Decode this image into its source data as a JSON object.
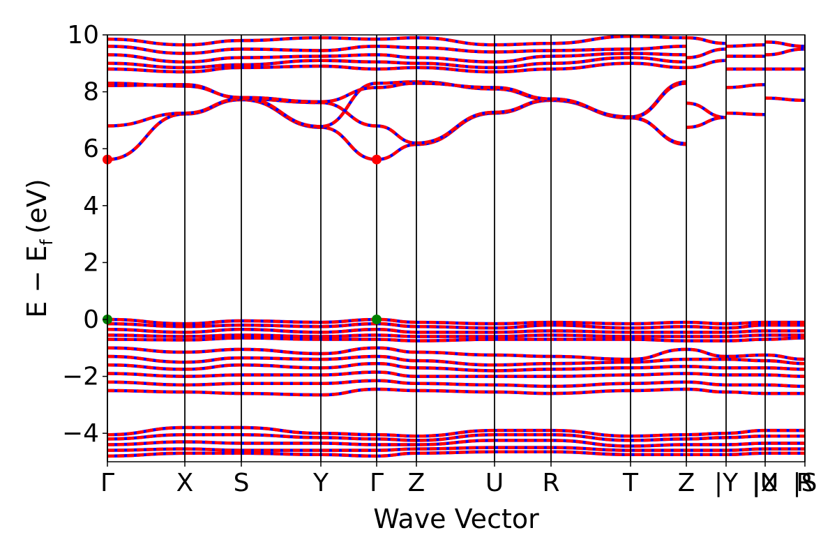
{
  "chart_data": {
    "type": "line",
    "xlabel": "Wave Vector",
    "ylabel": {
      "main": "E − E",
      "sub": "f",
      "unit": "(eV)"
    },
    "ylim": [
      -5,
      10
    ],
    "yticks": [
      -4,
      -2,
      0,
      2,
      4,
      6,
      8,
      10
    ],
    "ytick_labels": [
      "−4",
      "−2",
      "0",
      "2",
      "4",
      "6",
      "8",
      "10"
    ],
    "grid": false,
    "legend": "none",
    "kpath_range": [
      0,
      1
    ],
    "kpoints": [
      {
        "label": "Γ",
        "x": 0.0
      },
      {
        "label": "X",
        "x": 0.111
      },
      {
        "label": "S",
        "x": 0.192
      },
      {
        "label": "Y",
        "x": 0.306
      },
      {
        "label": "Γ",
        "x": 0.386
      },
      {
        "label": "Z",
        "x": 0.443
      },
      {
        "label": "U",
        "x": 0.555
      },
      {
        "label": "R",
        "x": 0.636
      },
      {
        "label": "T",
        "x": 0.75
      },
      {
        "label": "Z",
        "x": 0.83
      },
      {
        "label": "|Y",
        "x": 0.887
      },
      {
        "label": "|X",
        "x": 0.943
      },
      {
        "label": "|U",
        "x": 0.943
      },
      {
        "label": "|S",
        "x": 1.0
      },
      {
        "label": "R",
        "x": 1.0
      }
    ],
    "kpoint_lines": [
      0.0,
      0.111,
      0.192,
      0.306,
      0.386,
      0.443,
      0.555,
      0.636,
      0.75,
      0.83,
      0.887,
      0.943,
      1.0
    ],
    "segment_breaks": [
      0.83,
      0.887,
      0.943
    ],
    "colors": {
      "spin_up": "#0000ff",
      "spin_down": "#ff0000",
      "cbm": "#ff0000",
      "vbm": "#008000",
      "line": "#000000"
    },
    "cbm_points": [
      {
        "x": 0.0,
        "y": 5.62
      },
      {
        "x": 0.386,
        "y": 5.62
      }
    ],
    "vbm_points": [
      {
        "x": 0.0,
        "y": 0.0
      },
      {
        "x": 0.386,
        "y": 0.0
      }
    ],
    "bands": [
      {
        "x": [
          0.0,
          0.111,
          0.192,
          0.306,
          0.386,
          0.443,
          0.555,
          0.636,
          0.75,
          0.83
        ],
        "y": [
          5.62,
          7.22,
          7.72,
          6.75,
          5.62,
          6.15,
          7.25,
          7.7,
          7.1,
          6.15
        ]
      },
      {
        "x": [
          0.0,
          0.111,
          0.192,
          0.306,
          0.386,
          0.443,
          0.555,
          0.636,
          0.75,
          0.83
        ],
        "y": [
          6.8,
          7.25,
          7.75,
          7.62,
          6.8,
          6.2,
          7.28,
          7.72,
          7.12,
          8.35
        ]
      },
      {
        "x": [
          0.0,
          0.111,
          0.192,
          0.306,
          0.386,
          0.443,
          0.555,
          0.636,
          0.75,
          0.83
        ],
        "y": [
          8.22,
          8.25,
          7.78,
          6.78,
          8.3,
          8.35,
          8.1,
          7.72,
          7.08,
          6.18
        ]
      },
      {
        "x": [
          0.0,
          0.111,
          0.192,
          0.306,
          0.386,
          0.443,
          0.555,
          0.636,
          0.75,
          0.83
        ],
        "y": [
          8.3,
          8.2,
          7.8,
          7.65,
          8.15,
          8.3,
          8.15,
          7.75,
          7.1,
          8.3
        ]
      },
      {
        "x": [
          0.0,
          0.111,
          0.192,
          0.306,
          0.386,
          0.443,
          0.555,
          0.636,
          0.75,
          0.83
        ],
        "y": [
          8.8,
          8.7,
          8.85,
          8.9,
          8.8,
          8.85,
          8.7,
          8.8,
          9.0,
          8.85
        ]
      },
      {
        "x": [
          0.0,
          0.111,
          0.192,
          0.306,
          0.386,
          0.443,
          0.555,
          0.636,
          0.75,
          0.83
        ],
        "y": [
          9.0,
          8.85,
          8.95,
          9.1,
          9.05,
          9.0,
          8.85,
          9.0,
          9.2,
          9.05
        ]
      },
      {
        "x": [
          0.0,
          0.111,
          0.192,
          0.306,
          0.386,
          0.443,
          0.555,
          0.636,
          0.75,
          0.83
        ],
        "y": [
          9.3,
          9.05,
          9.2,
          9.25,
          9.3,
          9.2,
          9.05,
          9.25,
          9.35,
          9.3
        ]
      },
      {
        "x": [
          0.0,
          0.111,
          0.192,
          0.306,
          0.386,
          0.443,
          0.555,
          0.636,
          0.75,
          0.83
        ],
        "y": [
          9.6,
          9.35,
          9.5,
          9.45,
          9.6,
          9.55,
          9.4,
          9.45,
          9.5,
          9.6
        ]
      },
      {
        "x": [
          0.0,
          0.111,
          0.192,
          0.306,
          0.386,
          0.443,
          0.555,
          0.636,
          0.75,
          0.83
        ],
        "y": [
          9.85,
          9.65,
          9.8,
          9.9,
          9.85,
          9.9,
          9.65,
          9.7,
          9.95,
          9.9
        ]
      },
      {
        "x": [
          0.83,
          0.887
        ],
        "y": [
          7.6,
          7.1
        ]
      },
      {
        "x": [
          0.83,
          0.887
        ],
        "y": [
          6.75,
          7.1
        ]
      },
      {
        "x": [
          0.83,
          0.887
        ],
        "y": [
          8.85,
          9.1
        ]
      },
      {
        "x": [
          0.83,
          0.887
        ],
        "y": [
          9.2,
          9.5
        ]
      },
      {
        "x": [
          0.83,
          0.887
        ],
        "y": [
          9.9,
          9.7
        ]
      },
      {
        "x": [
          0.887,
          0.943
        ],
        "y": [
          8.15,
          8.25
        ]
      },
      {
        "x": [
          0.887,
          0.943
        ],
        "y": [
          7.25,
          7.2
        ]
      },
      {
        "x": [
          0.887,
          0.943
        ],
        "y": [
          8.8,
          8.8
        ]
      },
      {
        "x": [
          0.887,
          0.943
        ],
        "y": [
          9.25,
          9.25
        ]
      },
      {
        "x": [
          0.887,
          0.943
        ],
        "y": [
          9.6,
          9.65
        ]
      },
      {
        "x": [
          0.943,
          1.0
        ],
        "y": [
          7.78,
          7.7
        ]
      },
      {
        "x": [
          0.943,
          1.0
        ],
        "y": [
          8.8,
          8.8
        ]
      },
      {
        "x": [
          0.943,
          1.0
        ],
        "y": [
          9.3,
          9.5
        ]
      },
      {
        "x": [
          0.943,
          1.0
        ],
        "y": [
          9.75,
          9.6
        ]
      },
      {
        "x": [
          0.0,
          0.111,
          0.192,
          0.306,
          0.386,
          0.443,
          0.555,
          0.636,
          0.75,
          0.83,
          0.887,
          0.943,
          1.0
        ],
        "y": [
          0.0,
          -0.15,
          -0.05,
          -0.1,
          0.0,
          -0.1,
          -0.15,
          -0.1,
          -0.15,
          -0.1,
          -0.15,
          -0.1,
          -0.1
        ]
      },
      {
        "x": [
          0.0,
          0.111,
          0.192,
          0.306,
          0.386,
          0.443,
          0.555,
          0.636,
          0.75,
          0.83,
          0.887,
          0.943,
          1.0
        ],
        "y": [
          -0.15,
          -0.25,
          -0.2,
          -0.25,
          -0.15,
          -0.25,
          -0.3,
          -0.2,
          -0.3,
          -0.25,
          -0.3,
          -0.2,
          -0.2
        ]
      },
      {
        "x": [
          0.0,
          0.111,
          0.192,
          0.306,
          0.386,
          0.443,
          0.555,
          0.636,
          0.75,
          0.83,
          0.887,
          0.943,
          1.0
        ],
        "y": [
          -0.35,
          -0.45,
          -0.35,
          -0.45,
          -0.35,
          -0.45,
          -0.45,
          -0.4,
          -0.45,
          -0.45,
          -0.45,
          -0.4,
          -0.4
        ]
      },
      {
        "x": [
          0.0,
          0.111,
          0.192,
          0.306,
          0.386,
          0.443,
          0.555,
          0.636,
          0.75,
          0.83,
          0.887,
          0.943,
          1.0
        ],
        "y": [
          -0.55,
          -0.6,
          -0.55,
          -0.6,
          -0.55,
          -0.6,
          -0.6,
          -0.55,
          -0.6,
          -0.6,
          -0.6,
          -0.55,
          -0.55
        ]
      },
      {
        "x": [
          0.0,
          0.111,
          0.192,
          0.306,
          0.386,
          0.443,
          0.555,
          0.636,
          0.75,
          0.83,
          0.887,
          0.943,
          1.0
        ],
        "y": [
          -0.7,
          -0.72,
          -0.65,
          -0.7,
          -0.7,
          -0.75,
          -0.7,
          -0.7,
          -0.7,
          -0.75,
          -0.75,
          -0.7,
          -0.65
        ]
      },
      {
        "x": [
          0.0,
          0.111,
          0.192,
          0.306,
          0.386,
          0.443,
          0.555,
          0.636,
          0.75,
          0.83,
          0.887,
          0.943,
          1.0
        ],
        "y": [
          -1.0,
          -1.15,
          -1.05,
          -1.2,
          -1.0,
          -1.15,
          -1.25,
          -1.3,
          -1.4,
          -1.05,
          -1.3,
          -1.25,
          -1.4
        ]
      },
      {
        "x": [
          0.0,
          0.111,
          0.192,
          0.306,
          0.386,
          0.443,
          0.555,
          0.636,
          0.75,
          0.83,
          0.887,
          0.943,
          1.0
        ],
        "y": [
          -1.3,
          -1.5,
          -1.35,
          -1.4,
          -1.3,
          -1.45,
          -1.6,
          -1.55,
          -1.5,
          -1.4,
          -1.4,
          -1.45,
          -1.55
        ]
      },
      {
        "x": [
          0.0,
          0.111,
          0.192,
          0.306,
          0.386,
          0.443,
          0.555,
          0.636,
          0.75,
          0.83,
          0.887,
          0.943,
          1.0
        ],
        "y": [
          -1.6,
          -1.75,
          -1.6,
          -1.7,
          -1.55,
          -1.7,
          -1.8,
          -1.75,
          -1.7,
          -1.65,
          -1.7,
          -1.7,
          -1.75
        ]
      },
      {
        "x": [
          0.0,
          0.111,
          0.192,
          0.306,
          0.386,
          0.443,
          0.555,
          0.636,
          0.75,
          0.83,
          0.887,
          0.943,
          1.0
        ],
        "y": [
          -1.9,
          -2.0,
          -1.95,
          -1.95,
          -1.85,
          -2.0,
          -2.0,
          -2.0,
          -1.95,
          -1.9,
          -1.95,
          -1.95,
          -2.0
        ]
      },
      {
        "x": [
          0.0,
          0.111,
          0.192,
          0.306,
          0.386,
          0.443,
          0.555,
          0.636,
          0.75,
          0.83,
          0.887,
          0.943,
          1.0
        ],
        "y": [
          -2.2,
          -2.3,
          -2.25,
          -2.25,
          -2.15,
          -2.25,
          -2.3,
          -2.35,
          -2.25,
          -2.2,
          -2.3,
          -2.3,
          -2.35
        ]
      },
      {
        "x": [
          0.0,
          0.111,
          0.192,
          0.306,
          0.386,
          0.443,
          0.555,
          0.636,
          0.75,
          0.83,
          0.887,
          0.943,
          1.0
        ],
        "y": [
          -2.5,
          -2.55,
          -2.6,
          -2.65,
          -2.45,
          -2.5,
          -2.55,
          -2.6,
          -2.5,
          -2.45,
          -2.55,
          -2.6,
          -2.6
        ]
      },
      {
        "x": [
          0.0,
          0.111,
          0.192,
          0.306,
          0.386,
          0.443,
          0.555,
          0.636,
          0.75,
          0.83,
          0.887,
          0.943,
          1.0
        ],
        "y": [
          -4.05,
          -3.8,
          -3.8,
          -4.0,
          -4.05,
          -4.1,
          -3.9,
          -3.9,
          -4.1,
          -4.05,
          -4.0,
          -3.9,
          -3.9
        ]
      },
      {
        "x": [
          0.0,
          0.111,
          0.192,
          0.306,
          0.386,
          0.443,
          0.555,
          0.636,
          0.75,
          0.83,
          0.887,
          0.943,
          1.0
        ],
        "y": [
          -4.2,
          -4.05,
          -4.05,
          -4.15,
          -4.2,
          -4.25,
          -4.05,
          -4.05,
          -4.25,
          -4.2,
          -4.15,
          -4.1,
          -4.1
        ]
      },
      {
        "x": [
          0.0,
          0.111,
          0.192,
          0.306,
          0.386,
          0.443,
          0.555,
          0.636,
          0.75,
          0.83,
          0.887,
          0.943,
          1.0
        ],
        "y": [
          -4.4,
          -4.3,
          -4.35,
          -4.35,
          -4.4,
          -4.4,
          -4.25,
          -4.25,
          -4.45,
          -4.4,
          -4.4,
          -4.35,
          -4.35
        ]
      },
      {
        "x": [
          0.0,
          0.111,
          0.192,
          0.306,
          0.386,
          0.443,
          0.555,
          0.636,
          0.75,
          0.83,
          0.887,
          0.943,
          1.0
        ],
        "y": [
          -4.6,
          -4.55,
          -4.6,
          -4.6,
          -4.6,
          -4.55,
          -4.5,
          -4.5,
          -4.6,
          -4.6,
          -4.6,
          -4.55,
          -4.55
        ]
      },
      {
        "x": [
          0.0,
          0.111,
          0.192,
          0.306,
          0.386,
          0.443,
          0.555,
          0.636,
          0.75,
          0.83,
          0.887,
          0.943,
          1.0
        ],
        "y": [
          -4.8,
          -4.7,
          -4.7,
          -4.75,
          -4.8,
          -4.7,
          -4.65,
          -4.65,
          -4.75,
          -4.75,
          -4.75,
          -4.7,
          -4.7
        ]
      }
    ]
  }
}
